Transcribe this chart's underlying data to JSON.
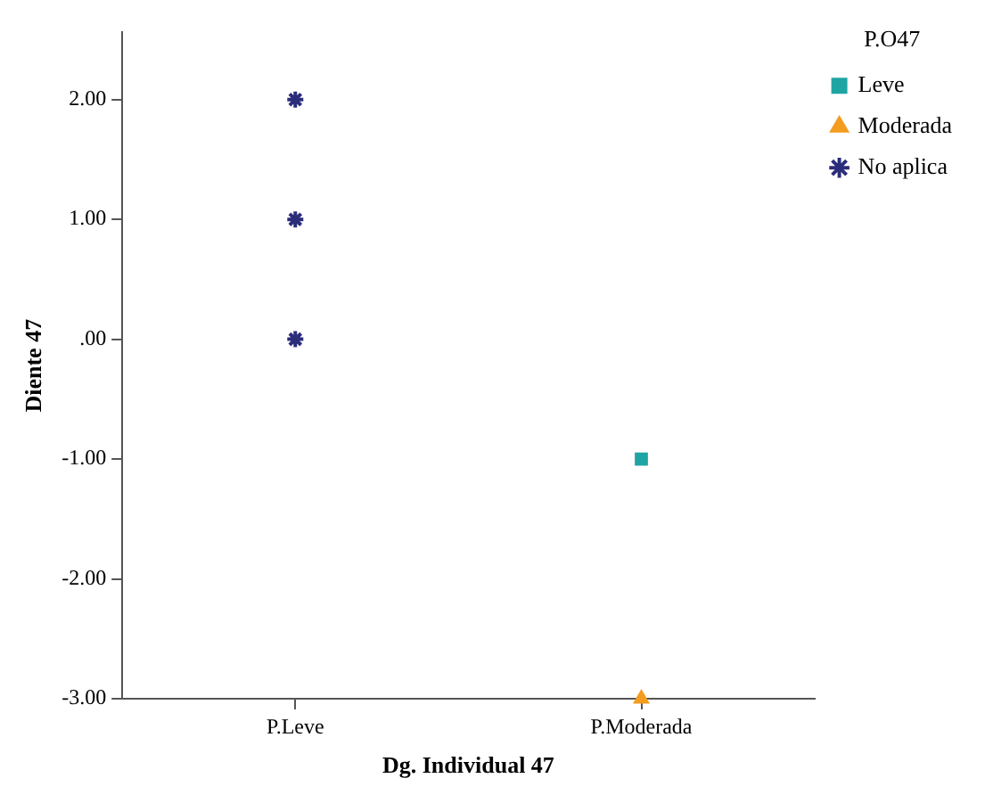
{
  "chart_data": {
    "type": "scatter",
    "xlabel": "Dg. Individual 47",
    "ylabel": "Diente 47",
    "legend_title": "P.O47",
    "categories": [
      "P.Leve",
      "P.Moderada"
    ],
    "series": [
      {
        "name": "Leve",
        "color": "#1fa4a4",
        "marker": "square",
        "x": [
          "P.Moderada"
        ],
        "values": [
          -1
        ]
      },
      {
        "name": "Moderada",
        "color": "#f39c1f",
        "marker": "triangle",
        "x": [
          "P.Moderada"
        ],
        "values": [
          -3
        ]
      },
      {
        "name": "No aplica",
        "color": "#2b2d7a",
        "marker": "cross",
        "x": [
          "P.Leve",
          "P.Leve",
          "P.Leve"
        ],
        "values": [
          2,
          1,
          0
        ]
      }
    ],
    "ylim": [
      -3,
      2.56
    ],
    "yticks": [
      {
        "value": -3,
        "label": "-3.00"
      },
      {
        "value": -2,
        "label": "-2.00"
      },
      {
        "value": -1,
        "label": "-1.00"
      },
      {
        "value": 0,
        "label": ".00"
      },
      {
        "value": 1,
        "label": "1.00"
      },
      {
        "value": 2,
        "label": "2.00"
      }
    ],
    "grid": false,
    "legend": "top right"
  }
}
